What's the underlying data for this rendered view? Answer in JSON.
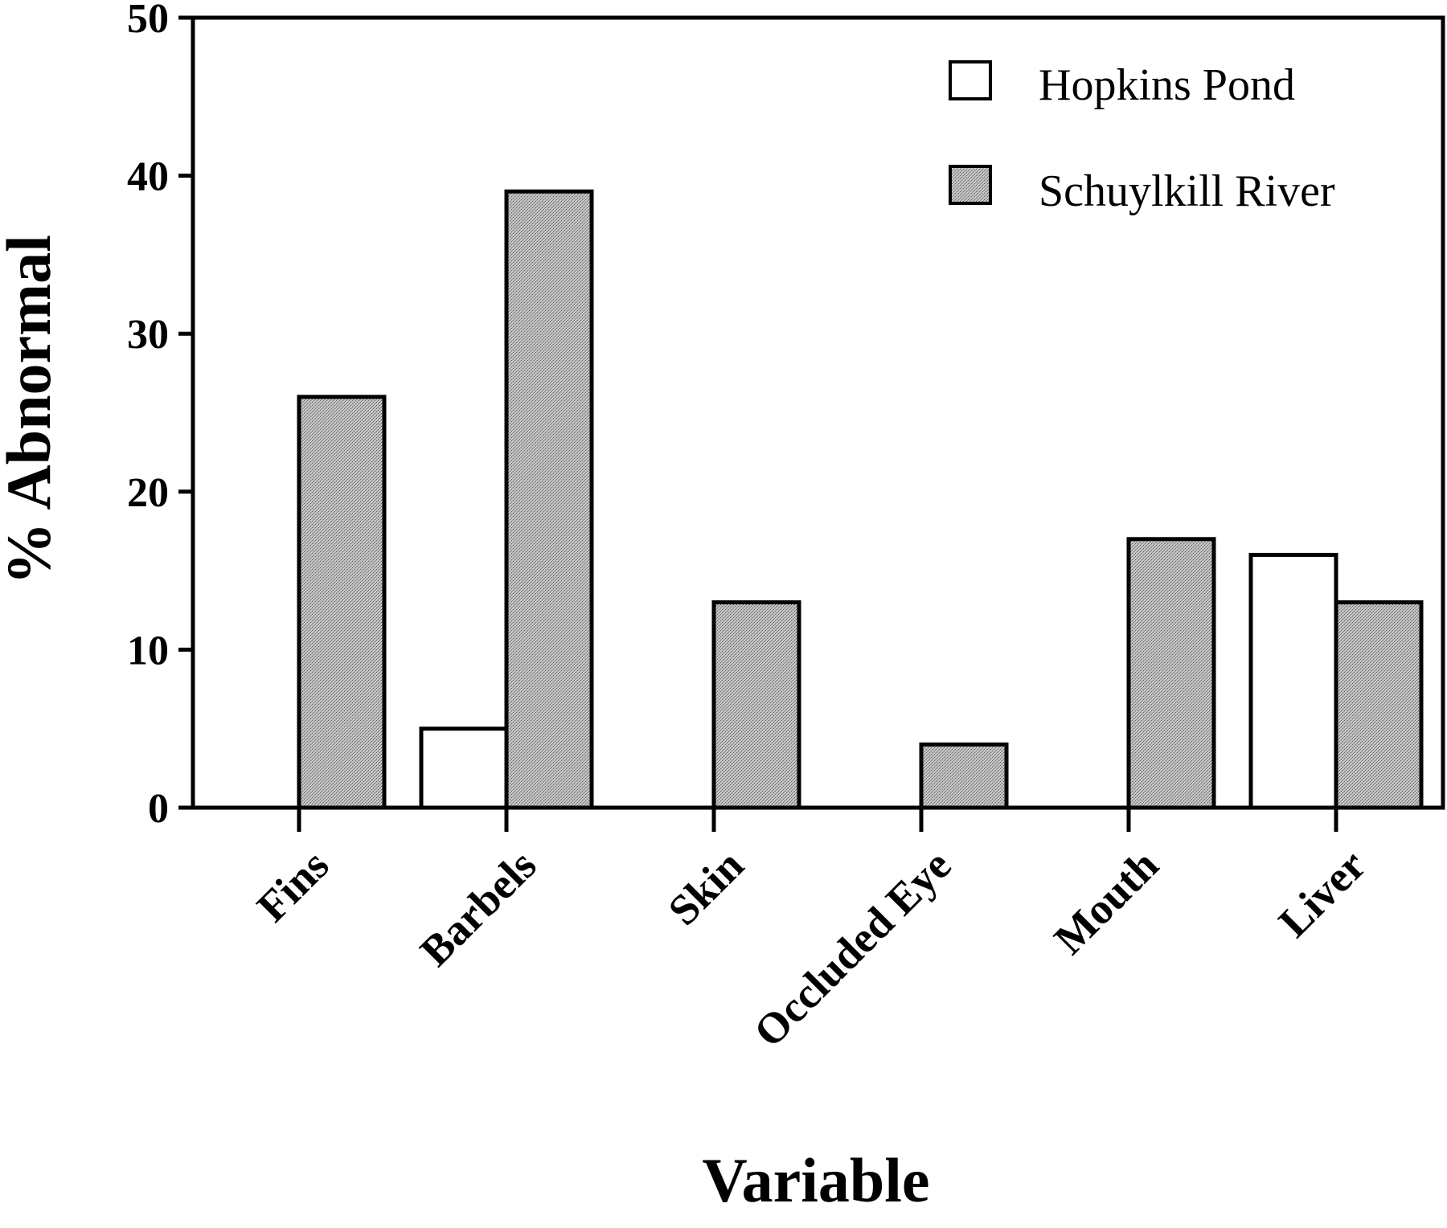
{
  "chart_data": {
    "type": "bar",
    "title": "",
    "xlabel": "Variable",
    "ylabel": "% Abnormal",
    "ylim": [
      0,
      50
    ],
    "yticks": [
      0,
      10,
      20,
      30,
      40,
      50
    ],
    "grid": false,
    "legend_position": "top-right",
    "categories": [
      "Fins",
      "Barbels",
      "Skin",
      "Occluded Eye",
      "Mouth",
      "Liver"
    ],
    "series": [
      {
        "name": "Hopkins Pond",
        "fill": "white",
        "values": [
          0,
          5,
          0,
          0,
          0,
          16
        ]
      },
      {
        "name": "Schuylkill River",
        "fill": "stippled-gray",
        "values": [
          26,
          39,
          13,
          4,
          17,
          13
        ]
      }
    ]
  },
  "colors": {
    "axis": "#000000",
    "hopkins_fill": "#ffffff",
    "schuylkill_fill": "#b8b8b8"
  }
}
